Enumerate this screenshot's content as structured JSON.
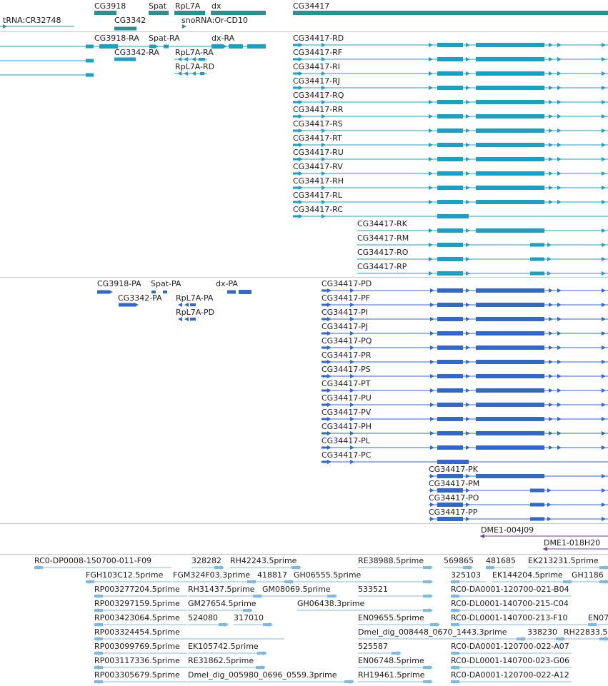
{
  "colors": {
    "gene": "#2f8f8f",
    "transcript": "#1ba0c3",
    "protein": "#3268c8",
    "est": "#6a3fa0",
    "cdna": "#7fb8e0"
  },
  "gene_track": {
    "labels": [
      "CG3918",
      "Spat",
      "RpL7A",
      "dx",
      "CG34417",
      "CG3342",
      "tRNA:CR32748",
      "snoRNA:Or-CD10"
    ]
  },
  "transcript_track": {
    "labels": [
      "CG3918-RA",
      "Spat-RA",
      "dx-RA",
      "CG3342-RA",
      "RpL7A-RA",
      "RpL7A-RD"
    ],
    "cg34417_labels": [
      "CG34417-RD",
      "CG34417-RF",
      "CG34417-RI",
      "CG34417-RJ",
      "CG34417-RQ",
      "CG34417-RR",
      "CG34417-RS",
      "CG34417-RT",
      "CG34417-RU",
      "CG34417-RV",
      "CG34417-RH",
      "CG34417-RL",
      "CG34417-RC"
    ],
    "cg34417_right_labels": [
      "CG34417-RK",
      "CG34417-RM",
      "CG34417-RO",
      "CG34417-RP"
    ]
  },
  "protein_track": {
    "labels": [
      "CG3918-PA",
      "Spat-PA",
      "dx-PA",
      "CG3342-PA",
      "RpL7A-PA",
      "RpL7A-PD"
    ],
    "cg34417_labels": [
      "CG34417-PD",
      "CG34417-PF",
      "CG34417-PI",
      "CG34417-PJ",
      "CG34417-PQ",
      "CG34417-PR",
      "CG34417-PS",
      "CG34417-PT",
      "CG34417-PU",
      "CG34417-PV",
      "CG34417-PH",
      "CG34417-PL",
      "CG34417-PC"
    ],
    "cg34417_right_labels": [
      "CG34417-PK",
      "CG34417-PM",
      "CG34417-PO",
      "CG34417-PP"
    ]
  },
  "est_track": {
    "labels": [
      "DME1-004J09",
      "DME1-018H20"
    ]
  },
  "cdna_track": {
    "labels": [
      "RC0-DP0008-150700-011-F09",
      "328282",
      "RH42243.5prime",
      "RE38988.5prime",
      "569865",
      "481685",
      "EK213231.5prime",
      "FGH103C12.5prime",
      "FGM324F03.3prime",
      "418817",
      "GH06555.5prime",
      "325103",
      "EK144204.5prime",
      "GH1186",
      "RP003277204.5prime",
      "RH31437.5prime",
      "GM08069.5prime",
      "533521",
      "RC0-DA0001-120700-021-B04",
      "RP003297159.5prime",
      "GM27654.5prime",
      "GH06438.3prime",
      "RC0-DL0001-140700-215-C04",
      "RP003423064.5prime",
      "524080",
      "317010",
      "EN09655.5prime",
      "RC0-DL0001-140700-213-F10",
      "EN07",
      "RP003324454.5prime",
      "Dmel_dig_008448_0670_1443.3prime",
      "338230",
      "RH22833.5",
      "RP003099769.5prime",
      "EK105742.5prime",
      "525587",
      "RC0-DA0001-120700-022-A07",
      "RP003117336.5prime",
      "RE31862.5prime",
      "EN06748.5prime",
      "RC0-DL0001-140700-023-G06",
      "RP003305679.5prime",
      "Dmel_dig_005980_0696_0559.3prime",
      "RH19461.5prime",
      "RC0-DA0001-120700-022-A12"
    ]
  }
}
